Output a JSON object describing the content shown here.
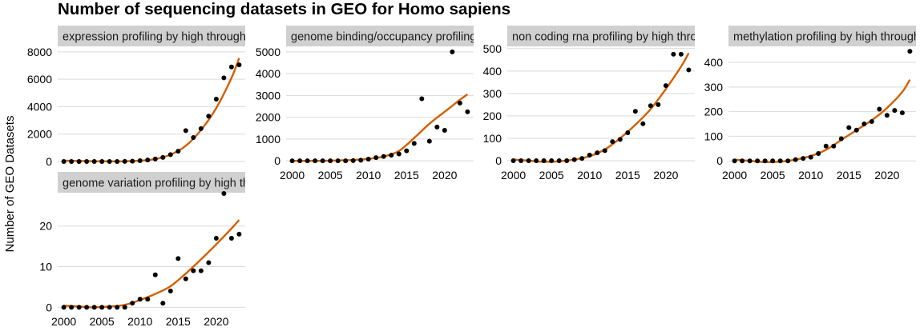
{
  "title": "Number of sequencing datasets in GEO for Homo sapiens",
  "ylabel": "Number of GEO Datasets",
  "colors": {
    "trend": "#d45f00",
    "point": "#000000",
    "strip": "#d0d0d0",
    "grid": "#d9d9d9"
  },
  "chart_data": [
    {
      "type": "scatter",
      "title": "expression profiling by high throughput sequencing",
      "x": [
        2000,
        2001,
        2002,
        2003,
        2004,
        2005,
        2006,
        2007,
        2008,
        2009,
        2010,
        2011,
        2012,
        2013,
        2014,
        2015,
        2016,
        2017,
        2018,
        2019,
        2020,
        2021,
        2022,
        2023
      ],
      "y": [
        0,
        0,
        0,
        0,
        0,
        0,
        0,
        0,
        10,
        20,
        60,
        110,
        180,
        300,
        500,
        750,
        2250,
        1750,
        2400,
        3300,
        4550,
        6100,
        6900,
        7050
      ],
      "trend": [
        [
          2000,
          60
        ],
        [
          2002,
          40
        ],
        [
          2004,
          20
        ],
        [
          2006,
          10
        ],
        [
          2008,
          20
        ],
        [
          2010,
          60
        ],
        [
          2012,
          180
        ],
        [
          2014,
          500
        ],
        [
          2016,
          1150
        ],
        [
          2018,
          2300
        ],
        [
          2020,
          3900
        ],
        [
          2022,
          6100
        ],
        [
          2023,
          7550
        ]
      ],
      "ylim": [
        -350,
        8400
      ],
      "yticks": [
        0,
        2000,
        4000,
        6000,
        8000
      ],
      "xlim": [
        1999.2,
        2023.8
      ],
      "xticks": [],
      "grid": true
    },
    {
      "type": "scatter",
      "title": "genome binding/occupancy profiling by high throughput sequencing",
      "x": [
        2000,
        2001,
        2002,
        2003,
        2004,
        2005,
        2006,
        2007,
        2008,
        2009,
        2010,
        2011,
        2012,
        2013,
        2014,
        2015,
        2016,
        2017,
        2018,
        2019,
        2020,
        2021,
        2022,
        2023
      ],
      "y": [
        0,
        0,
        0,
        0,
        0,
        0,
        0,
        0,
        10,
        30,
        80,
        150,
        200,
        260,
        320,
        460,
        800,
        2850,
        900,
        1550,
        1400,
        5000,
        2650,
        2250
      ],
      "trend": [
        [
          2000,
          0
        ],
        [
          2002,
          0
        ],
        [
          2004,
          0
        ],
        [
          2006,
          20
        ],
        [
          2008,
          40
        ],
        [
          2010,
          90
        ],
        [
          2012,
          200
        ],
        [
          2014,
          450
        ],
        [
          2016,
          1050
        ],
        [
          2018,
          1700
        ],
        [
          2020,
          2250
        ],
        [
          2022,
          2800
        ],
        [
          2023,
          3050
        ]
      ],
      "ylim": [
        -250,
        5250
      ],
      "yticks": [
        0,
        1000,
        2000,
        3000,
        4000,
        5000
      ],
      "xlim": [
        1999.2,
        2023.8
      ],
      "xticks": [
        2000,
        2005,
        2010,
        2015,
        2020
      ],
      "grid": true
    },
    {
      "type": "scatter",
      "title": "non coding rna profiling by high throughput sequencing",
      "x": [
        2000,
        2001,
        2002,
        2003,
        2004,
        2005,
        2006,
        2007,
        2008,
        2009,
        2010,
        2011,
        2012,
        2013,
        2014,
        2015,
        2016,
        2017,
        2018,
        2019,
        2020,
        2021,
        2022,
        2023
      ],
      "y": [
        0,
        0,
        0,
        0,
        0,
        0,
        0,
        0,
        5,
        10,
        25,
        35,
        45,
        85,
        95,
        125,
        220,
        165,
        245,
        250,
        335,
        475,
        475,
        405
      ],
      "trend": [
        [
          2000,
          5
        ],
        [
          2002,
          0
        ],
        [
          2004,
          -5
        ],
        [
          2006,
          -3
        ],
        [
          2008,
          5
        ],
        [
          2010,
          20
        ],
        [
          2012,
          50
        ],
        [
          2014,
          100
        ],
        [
          2016,
          160
        ],
        [
          2018,
          230
        ],
        [
          2020,
          320
        ],
        [
          2022,
          420
        ],
        [
          2023,
          480
        ]
      ],
      "ylim": [
        -25,
        510
      ],
      "yticks": [
        0,
        100,
        200,
        300,
        400,
        500
      ],
      "xlim": [
        1999.2,
        2023.8
      ],
      "xticks": [
        2000,
        2005,
        2010,
        2015,
        2020
      ],
      "grid": true
    },
    {
      "type": "scatter",
      "title": "methylation profiling by high throughput sequencing",
      "x": [
        2000,
        2001,
        2002,
        2003,
        2004,
        2005,
        2006,
        2007,
        2008,
        2009,
        2010,
        2011,
        2012,
        2013,
        2014,
        2015,
        2016,
        2017,
        2018,
        2019,
        2020,
        2021,
        2022,
        2023
      ],
      "y": [
        0,
        0,
        0,
        0,
        0,
        0,
        0,
        0,
        5,
        10,
        15,
        30,
        60,
        60,
        90,
        135,
        125,
        150,
        160,
        210,
        185,
        205,
        195,
        445
      ],
      "trend": [
        [
          2000,
          5
        ],
        [
          2002,
          0
        ],
        [
          2004,
          -5
        ],
        [
          2006,
          -3
        ],
        [
          2008,
          5
        ],
        [
          2010,
          20
        ],
        [
          2012,
          45
        ],
        [
          2014,
          85
        ],
        [
          2016,
          125
        ],
        [
          2018,
          165
        ],
        [
          2020,
          215
        ],
        [
          2022,
          280
        ],
        [
          2023,
          330
        ]
      ],
      "ylim": [
        -22,
        465
      ],
      "yticks": [
        0,
        100,
        200,
        300,
        400
      ],
      "xlim": [
        1999.2,
        2023.8
      ],
      "xticks": [
        2000,
        2005,
        2010,
        2015,
        2020
      ],
      "grid": true
    },
    {
      "type": "scatter",
      "title": "genome variation profiling by high throughput sequencing",
      "x": [
        2000,
        2001,
        2002,
        2003,
        2004,
        2005,
        2006,
        2007,
        2008,
        2009,
        2010,
        2011,
        2012,
        2013,
        2014,
        2015,
        2016,
        2017,
        2018,
        2019,
        2020,
        2021,
        2022,
        2023
      ],
      "y": [
        0,
        0,
        0,
        0,
        0,
        0,
        0,
        0,
        0,
        1,
        2,
        2,
        8,
        1,
        4,
        12,
        7,
        9,
        9,
        11,
        17,
        28,
        17,
        18
      ],
      "trend": [
        [
          2000,
          0.4
        ],
        [
          2002,
          0.2
        ],
        [
          2004,
          0
        ],
        [
          2006,
          0.2
        ],
        [
          2008,
          0.6
        ],
        [
          2010,
          1.8
        ],
        [
          2012,
          3.3
        ],
        [
          2014,
          5.2
        ],
        [
          2016,
          8.3
        ],
        [
          2018,
          11.8
        ],
        [
          2020,
          15.5
        ],
        [
          2022,
          19.4
        ],
        [
          2023,
          21.5
        ]
      ],
      "ylim": [
        -1.3,
        28.2
      ],
      "yticks": [
        0,
        10,
        20
      ],
      "xlim": [
        1999.2,
        2023.8
      ],
      "xticks": [
        2000,
        2005,
        2010,
        2015,
        2020
      ],
      "grid": true
    }
  ]
}
